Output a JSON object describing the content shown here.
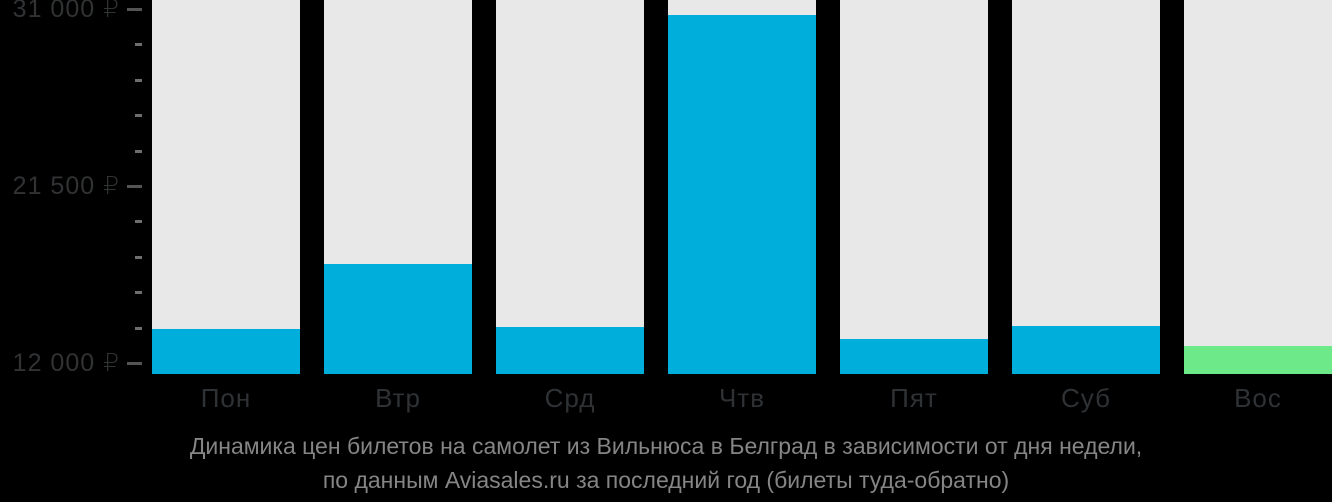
{
  "chart_data": {
    "type": "bar",
    "categories": [
      "Пон",
      "Втр",
      "Срд",
      "Чтв",
      "Пят",
      "Суб",
      "Вос"
    ],
    "values": [
      13850,
      17300,
      13950,
      30700,
      13300,
      14000,
      12900
    ],
    "highlight_index": 6,
    "ylim": [
      11400,
      31000
    ],
    "yticks": [
      {
        "value": 31000,
        "label": "31 000 ₽"
      },
      {
        "value": 21500,
        "label": "21 500 ₽"
      },
      {
        "value": 12000,
        "label": "12 000 ₽"
      }
    ],
    "minor_tick_step": 1900,
    "grid": false,
    "legend_position": "none",
    "xlabel": "",
    "ylabel": "",
    "caption": {
      "line1": "Динамика цен билетов на самолет из Вильнюса в Белград в зависимости от дня недели,",
      "line2": "по данным Aviasales.ru за последний год (билеты туда-обратно)"
    },
    "colors": {
      "background": "#000000",
      "column_track": "#E8E8E8",
      "bar": "#00AEDC",
      "bar_highlight": "#6DE98A",
      "axis_label": "#303234",
      "day_label": "#2F3235",
      "tick_major": "#545454",
      "tick_minor": "#6E6E6E",
      "caption": "#858585"
    }
  }
}
